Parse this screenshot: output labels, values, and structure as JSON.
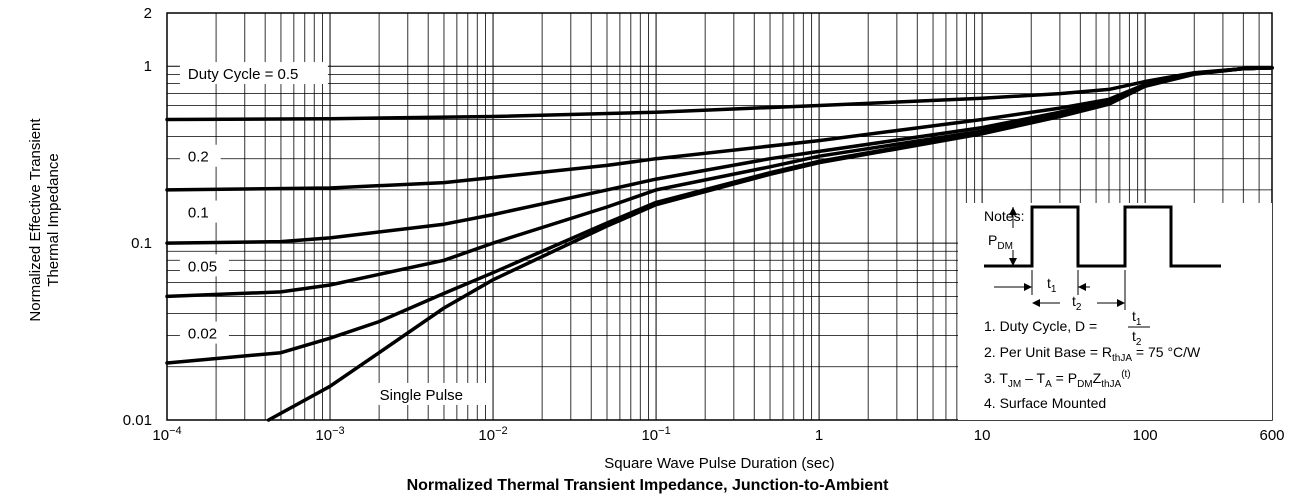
{
  "chart_data": {
    "type": "line",
    "title": "Normalized Thermal Transient Impedance, Junction-to-Ambient",
    "xlabel": "Square Wave Pulse Duration (sec)",
    "ylabel_lines": [
      "Normalized Effective Transient",
      "Thermal Impedance"
    ],
    "x_scale": "log",
    "y_scale": "log",
    "xlim": [
      0.0001,
      600
    ],
    "ylim": [
      0.01,
      2
    ],
    "x_ticks": [
      {
        "value": 0.0001,
        "base": "10",
        "exp": "−4",
        "label": ""
      },
      {
        "value": 0.001,
        "base": "10",
        "exp": "−3",
        "label": ""
      },
      {
        "value": 0.01,
        "base": "10",
        "exp": "−2",
        "label": ""
      },
      {
        "value": 0.1,
        "base": "10",
        "exp": "−1",
        "label": ""
      },
      {
        "value": 1,
        "base": "",
        "exp": "",
        "label": "1"
      },
      {
        "value": 10,
        "base": "",
        "exp": "",
        "label": "10"
      },
      {
        "value": 100,
        "base": "",
        "exp": "",
        "label": "100"
      },
      {
        "value": 600,
        "base": "",
        "exp": "",
        "label": "600"
      }
    ],
    "y_ticks": [
      {
        "value": 0.01,
        "label": "0.01"
      },
      {
        "value": 0.1,
        "label": "0.1"
      },
      {
        "value": 1,
        "label": "1"
      },
      {
        "value": 2,
        "label": "2"
      }
    ],
    "grid": true,
    "series": [
      {
        "name": "Duty Cycle = 0.5",
        "label_x": 0.00012,
        "label_y": 0.88,
        "points": [
          [
            0.0001,
            0.5
          ],
          [
            0.001,
            0.505
          ],
          [
            0.01,
            0.52
          ],
          [
            0.1,
            0.55
          ],
          [
            1,
            0.6
          ],
          [
            10,
            0.66
          ],
          [
            30,
            0.7
          ],
          [
            60,
            0.74
          ],
          [
            100,
            0.82
          ],
          [
            200,
            0.92
          ],
          [
            400,
            0.97
          ],
          [
            600,
            0.98
          ]
        ]
      },
      {
        "name": "0.2",
        "label_x": 0.00012,
        "label_y": 0.3,
        "points": [
          [
            0.0001,
            0.2
          ],
          [
            0.001,
            0.205
          ],
          [
            0.005,
            0.22
          ],
          [
            0.01,
            0.235
          ],
          [
            0.05,
            0.275
          ],
          [
            0.1,
            0.3
          ],
          [
            1,
            0.38
          ],
          [
            10,
            0.5
          ],
          [
            30,
            0.58
          ],
          [
            60,
            0.65
          ],
          [
            100,
            0.79
          ],
          [
            200,
            0.91
          ],
          [
            400,
            0.97
          ],
          [
            600,
            0.98
          ]
        ]
      },
      {
        "name": "0.1",
        "label_x": 0.00012,
        "label_y": 0.145,
        "points": [
          [
            0.0001,
            0.1
          ],
          [
            0.0005,
            0.102
          ],
          [
            0.001,
            0.107
          ],
          [
            0.005,
            0.128
          ],
          [
            0.01,
            0.145
          ],
          [
            0.05,
            0.2
          ],
          [
            0.1,
            0.23
          ],
          [
            0.5,
            0.3
          ],
          [
            1,
            0.33
          ],
          [
            10,
            0.45
          ],
          [
            30,
            0.55
          ],
          [
            60,
            0.64
          ],
          [
            100,
            0.79
          ],
          [
            200,
            0.91
          ],
          [
            400,
            0.97
          ],
          [
            600,
            0.98
          ]
        ]
      },
      {
        "name": "0.05",
        "label_x": 0.00012,
        "label_y": 0.072,
        "points": [
          [
            0.0001,
            0.05
          ],
          [
            0.0005,
            0.053
          ],
          [
            0.001,
            0.058
          ],
          [
            0.005,
            0.08
          ],
          [
            0.01,
            0.1
          ],
          [
            0.05,
            0.16
          ],
          [
            0.1,
            0.2
          ],
          [
            0.5,
            0.27
          ],
          [
            1,
            0.31
          ],
          [
            10,
            0.43
          ],
          [
            30,
            0.54
          ],
          [
            60,
            0.63
          ],
          [
            100,
            0.78
          ],
          [
            200,
            0.91
          ],
          [
            400,
            0.97
          ],
          [
            600,
            0.98
          ]
        ]
      },
      {
        "name": "0.02",
        "label_x": 0.00012,
        "label_y": 0.03,
        "points": [
          [
            0.0001,
            0.021
          ],
          [
            0.0005,
            0.024
          ],
          [
            0.001,
            0.029
          ],
          [
            0.002,
            0.036
          ],
          [
            0.005,
            0.052
          ],
          [
            0.01,
            0.068
          ],
          [
            0.05,
            0.13
          ],
          [
            0.1,
            0.17
          ],
          [
            0.5,
            0.25
          ],
          [
            1,
            0.29
          ],
          [
            10,
            0.42
          ],
          [
            30,
            0.53
          ],
          [
            60,
            0.62
          ],
          [
            100,
            0.78
          ],
          [
            200,
            0.91
          ],
          [
            400,
            0.97
          ],
          [
            600,
            0.98
          ]
        ]
      },
      {
        "name": "Single Pulse",
        "label_x": 0.0018,
        "label_y": 0.0135,
        "points": [
          [
            0.00042,
            0.01
          ],
          [
            0.001,
            0.0155
          ],
          [
            0.002,
            0.024
          ],
          [
            0.005,
            0.043
          ],
          [
            0.01,
            0.062
          ],
          [
            0.05,
            0.125
          ],
          [
            0.1,
            0.165
          ],
          [
            0.5,
            0.245
          ],
          [
            1,
            0.285
          ],
          [
            10,
            0.415
          ],
          [
            30,
            0.52
          ],
          [
            60,
            0.61
          ],
          [
            100,
            0.77
          ],
          [
            200,
            0.9
          ],
          [
            400,
            0.97
          ],
          [
            600,
            0.98
          ]
        ]
      }
    ],
    "notes": {
      "heading": "Notes:",
      "pdm": "P",
      "pdm_sub": "DM",
      "t1": "t",
      "t1_sub": "1",
      "t2": "t",
      "t2_sub": "2",
      "note1_text": "1. Duty Cycle, D =",
      "note2_text": "2. Per Unit Base = R",
      "note2_sub": "thJA",
      "note2_tail": " = 75 °C/W",
      "note3_a": "3. T",
      "note3_a_sub": "JM",
      "note3_b": " – T",
      "note3_b_sub": "A",
      "note3_c": " = P",
      "note3_c_sub": "DM",
      "note3_d": "Z",
      "note3_d_sub": "thJA",
      "note3_sup": "(t)",
      "note4_text": "4. Surface Mounted"
    }
  }
}
